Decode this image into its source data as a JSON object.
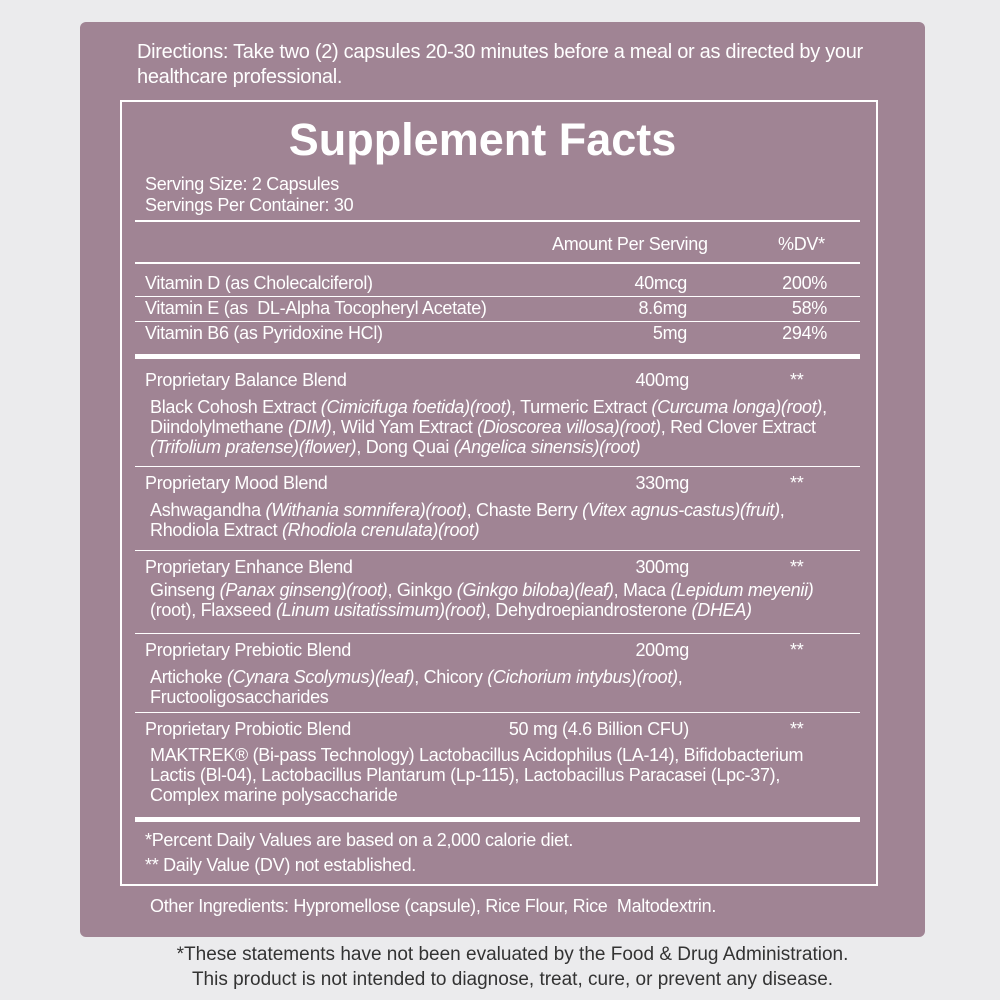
{
  "directions": "Directions: Take two (2) capsules 20-30 minutes before a meal or as directed by your healthcare professional.",
  "title": "Supplement Facts",
  "serving_size": "Serving Size: 2 Capsules",
  "servings_per_container": "Servings Per Container: 30",
  "header": {
    "amount": "Amount Per Serving",
    "dv": "%DV*"
  },
  "vitamins": [
    {
      "name": "Vitamin D (as Cholecalciferol)",
      "amount": "40mcg",
      "dv": "200%"
    },
    {
      "name": "Vitamin E (as  DL-Alpha Tocopheryl Acetate)",
      "amount": "8.6mg",
      "dv": "58%"
    },
    {
      "name": "Vitamin B6 (as Pyridoxine HCl)",
      "amount": "5mg",
      "dv": "294%"
    }
  ],
  "blends": [
    {
      "name": "Proprietary Balance Blend",
      "amount": "400mg",
      "dv": "**",
      "description": [
        "Black Cohosh Extract ",
        {
          "text": "(Cimicifuga foetida)(root)",
          "italic": true
        },
        ", Turmeric Extract ",
        {
          "text": "(Curcuma longa)(root)",
          "italic": true
        },
        ", Diindolylmethane ",
        {
          "text": "(DIM)",
          "italic": true
        },
        ", Wild Yam Extract ",
        {
          "text": "(Dioscorea villosa)(root)",
          "italic": true
        },
        ", Red Clover Extract ",
        {
          "text": "(Trifolium pratense)(flower)",
          "italic": true
        },
        ", Dong Quai ",
        {
          "text": "(Angelica sinensis)(root)",
          "italic": true
        }
      ]
    },
    {
      "name": "Proprietary Mood Blend",
      "amount": "330mg",
      "dv": "**",
      "description": [
        "Ashwagandha ",
        {
          "text": "(Withania somnifera)(root)",
          "italic": true
        },
        ", Chaste Berry ",
        {
          "text": "(Vitex agnus-castus)(fruit)",
          "italic": true
        },
        ", Rhodiola Extract ",
        {
          "text": "(Rhodiola crenulata)(root)",
          "italic": true
        }
      ]
    },
    {
      "name": "Proprietary Enhance Blend",
      "amount": "300mg",
      "dv": "**",
      "description": [
        "Ginseng ",
        {
          "text": "(Panax ginseng)(root)",
          "italic": true
        },
        ", Ginkgo ",
        {
          "text": "(Ginkgo biloba)(leaf)",
          "italic": true
        },
        ", Maca ",
        {
          "text": "(Lepidum meyenii)",
          "italic": true
        },
        "(root), Flaxseed ",
        {
          "text": "(Linum usitatissimum)(root)",
          "italic": true
        },
        ", Dehydroepiandrosterone ",
        {
          "text": "(DHEA)",
          "italic": true
        }
      ]
    },
    {
      "name": "Proprietary Prebiotic Blend",
      "amount": "200mg",
      "dv": "**",
      "description": [
        "Artichoke ",
        {
          "text": "(Cynara Scolymus)(leaf)",
          "italic": true
        },
        ", Chicory ",
        {
          "text": "(Cichorium intybus)(root)",
          "italic": true
        },
        ", Fructooligosaccharides"
      ]
    },
    {
      "name": "Proprietary Probiotic Blend",
      "amount": "50 mg (4.6 Billion CFU)",
      "dv": "**",
      "description": [
        "MAKTREK® (Bi-pass Technology) Lactobacillus Acidophilus (LA-14), Bifidobacterium Lactis (Bl-04), Lactobacillus Plantarum (Lp-115), Lactobacillus Paracasei (Lpc-37), Complex marine polysaccharide"
      ]
    }
  ],
  "footnotes": [
    "*Percent Daily Values are based on a 2,000 calorie diet.",
    "** Daily Value (DV) not established."
  ],
  "other_ingredients": "Other Ingredients: Hypromellose (capsule), Rice Flour, Rice  Maltodextrin.",
  "disclaimer": [
    "*These statements have not been evaluated by the Food & Drug Administration.",
    "This product is not intended to diagnose, treat, cure, or prevent any disease."
  ]
}
